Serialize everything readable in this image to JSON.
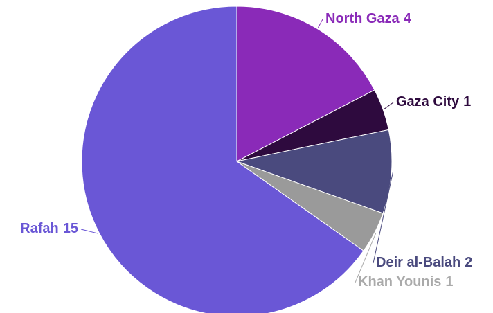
{
  "chart_data": {
    "type": "pie",
    "categories": [
      "North Gaza",
      "Gaza City",
      "Deir al-Balah",
      "Khan Younis",
      "Rafah"
    ],
    "values": [
      4,
      1,
      2,
      1,
      15
    ],
    "colors": [
      "#8a2ab8",
      "#2e0a3e",
      "#4a4a7e",
      "#9a9a9a",
      "#6a57d6"
    ]
  }
}
